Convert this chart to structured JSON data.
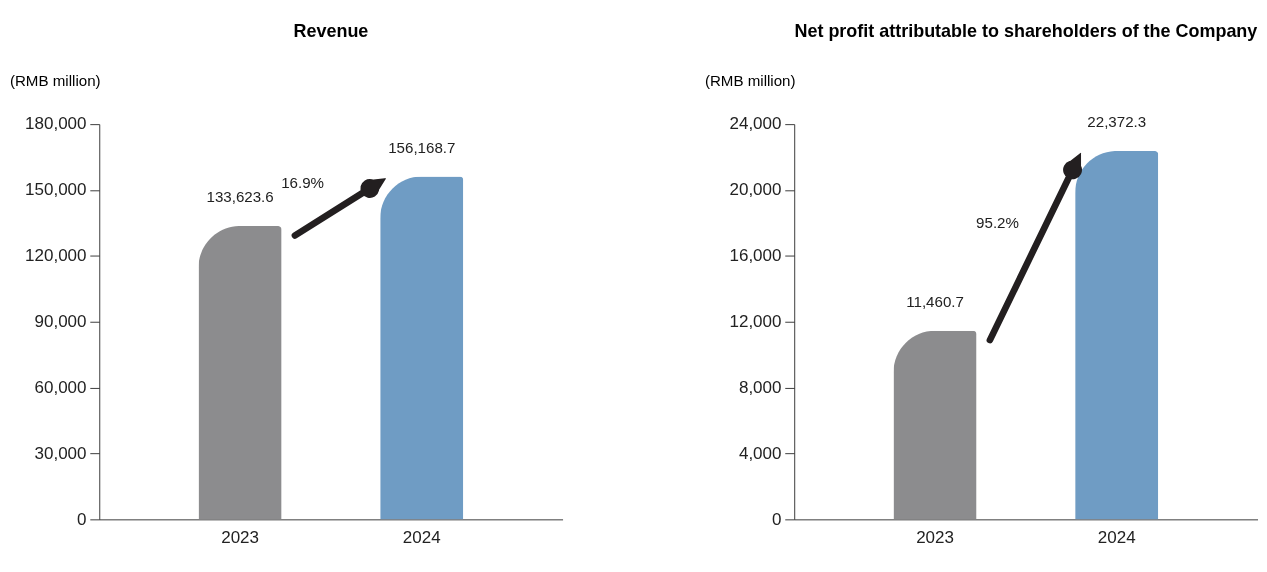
{
  "chart_data": [
    {
      "type": "bar",
      "title": "Revenue",
      "ylabel": "(RMB million)",
      "categories": [
        "2023",
        "2024"
      ],
      "values": [
        133623.6,
        156168.7
      ],
      "colors": [
        "#8c8c8e",
        "#6f9cc4"
      ],
      "value_labels": [
        "133,623.6",
        "156,168.7"
      ],
      "ylim": [
        0,
        180000
      ],
      "yticks": [
        0,
        {
          "value": 30000,
          "label": "30,000"
        },
        {
          "value": 60000,
          "label": "60,000"
        },
        {
          "value": 90000,
          "label": "90,000"
        },
        {
          "value": 120000,
          "label": "120,000"
        },
        {
          "value": 150000,
          "label": "150,000"
        },
        {
          "value": 180000,
          "label": "180,000"
        }
      ],
      "grid": false,
      "annotations": [
        "16.9%"
      ]
    },
    {
      "type": "bar",
      "title": "Net profit attributable to shareholders of the Company",
      "ylabel": "(RMB million)",
      "categories": [
        "2023",
        "2024"
      ],
      "values": [
        11460.7,
        22372.3
      ],
      "colors": [
        "#8c8c8e",
        "#6f9cc4"
      ],
      "value_labels": [
        "11,460.7",
        "22,372.3"
      ],
      "ylim": [
        0,
        24000
      ],
      "yticks": [
        0,
        {
          "value": 4000,
          "label": "4,000"
        },
        {
          "value": 8000,
          "label": "8,000"
        },
        {
          "value": 12000,
          "label": "12,000"
        },
        {
          "value": 16000,
          "label": "16,000"
        },
        {
          "value": 20000,
          "label": "20,000"
        },
        {
          "value": 24000,
          "label": "24,000"
        }
      ],
      "grid": false,
      "annotations": [
        "95.2%"
      ]
    }
  ]
}
